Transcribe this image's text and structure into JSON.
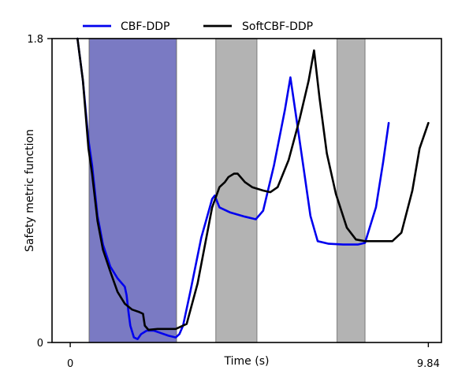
{
  "chart_data": {
    "type": "line",
    "title": "",
    "xlabel": "Time (s)",
    "ylabel": "Safety metric function",
    "xlim": [
      -0.5,
      10.2
    ],
    "ylim": [
      0,
      1.8
    ],
    "x_ticks": [
      {
        "value": 0,
        "label": "0"
      },
      {
        "value": 9.84,
        "label": "9.84"
      }
    ],
    "y_ticks": [
      {
        "value": 0,
        "label": "0"
      },
      {
        "value": 1.8,
        "label": "1.8"
      }
    ],
    "legend_position": "top (above plot)",
    "grid": false,
    "shaded_regions": [
      {
        "x0": 0.52,
        "x1": 2.92,
        "color": "#999999",
        "opacity": 0.75
      },
      {
        "x0": 0.52,
        "x1": 2.92,
        "color": "#4a4ad0",
        "opacity": 0.55
      },
      {
        "x0": 4.0,
        "x1": 5.13,
        "color": "#999999",
        "opacity": 0.75
      },
      {
        "x0": 7.33,
        "x1": 8.1,
        "color": "#999999",
        "opacity": 0.75
      }
    ],
    "series": [
      {
        "name": "CBF-DDP",
        "color": "#0000ee",
        "points": [
          [
            0.2,
            1.8
          ],
          [
            0.35,
            1.55
          ],
          [
            0.5,
            1.2
          ],
          [
            0.6,
            1.05
          ],
          [
            0.75,
            0.75
          ],
          [
            0.9,
            0.58
          ],
          [
            1.1,
            0.45
          ],
          [
            1.3,
            0.38
          ],
          [
            1.5,
            0.33
          ],
          [
            1.55,
            0.28
          ],
          [
            1.6,
            0.18
          ],
          [
            1.65,
            0.1
          ],
          [
            1.75,
            0.03
          ],
          [
            1.85,
            0.02
          ],
          [
            1.95,
            0.05
          ],
          [
            2.1,
            0.07
          ],
          [
            2.3,
            0.07
          ],
          [
            2.5,
            0.055
          ],
          [
            2.7,
            0.04
          ],
          [
            2.9,
            0.03
          ],
          [
            3.0,
            0.05
          ],
          [
            3.1,
            0.1
          ],
          [
            3.3,
            0.3
          ],
          [
            3.6,
            0.62
          ],
          [
            3.9,
            0.85
          ],
          [
            3.97,
            0.87
          ],
          [
            4.1,
            0.8
          ],
          [
            4.4,
            0.77
          ],
          [
            4.8,
            0.745
          ],
          [
            5.1,
            0.73
          ],
          [
            5.3,
            0.78
          ],
          [
            5.6,
            1.05
          ],
          [
            5.9,
            1.38
          ],
          [
            6.05,
            1.57
          ],
          [
            6.2,
            1.35
          ],
          [
            6.4,
            1.05
          ],
          [
            6.6,
            0.75
          ],
          [
            6.8,
            0.6
          ],
          [
            7.1,
            0.585
          ],
          [
            7.5,
            0.58
          ],
          [
            7.9,
            0.58
          ],
          [
            8.1,
            0.59
          ],
          [
            8.4,
            0.8
          ],
          [
            8.6,
            1.07
          ],
          [
            8.75,
            1.3
          ]
        ]
      },
      {
        "name": "SoftCBF-DDP",
        "color": "#000000",
        "points": [
          [
            0.2,
            1.8
          ],
          [
            0.35,
            1.55
          ],
          [
            0.5,
            1.15
          ],
          [
            0.6,
            1.0
          ],
          [
            0.75,
            0.72
          ],
          [
            0.9,
            0.55
          ],
          [
            1.1,
            0.42
          ],
          [
            1.3,
            0.3
          ],
          [
            1.5,
            0.23
          ],
          [
            1.7,
            0.195
          ],
          [
            1.9,
            0.18
          ],
          [
            2.0,
            0.17
          ],
          [
            2.05,
            0.1
          ],
          [
            2.15,
            0.075
          ],
          [
            2.4,
            0.08
          ],
          [
            2.7,
            0.08
          ],
          [
            2.9,
            0.08
          ],
          [
            3.2,
            0.11
          ],
          [
            3.5,
            0.35
          ],
          [
            3.9,
            0.8
          ],
          [
            4.1,
            0.92
          ],
          [
            4.25,
            0.95
          ],
          [
            4.35,
            0.98
          ],
          [
            4.5,
            1.0
          ],
          [
            4.6,
            1.0
          ],
          [
            4.8,
            0.95
          ],
          [
            5.0,
            0.92
          ],
          [
            5.3,
            0.9
          ],
          [
            5.5,
            0.89
          ],
          [
            5.7,
            0.92
          ],
          [
            6.0,
            1.08
          ],
          [
            6.3,
            1.32
          ],
          [
            6.55,
            1.55
          ],
          [
            6.7,
            1.73
          ],
          [
            6.85,
            1.45
          ],
          [
            7.05,
            1.12
          ],
          [
            7.3,
            0.88
          ],
          [
            7.6,
            0.68
          ],
          [
            7.85,
            0.61
          ],
          [
            8.1,
            0.6
          ],
          [
            8.4,
            0.6
          ],
          [
            8.85,
            0.6
          ],
          [
            9.1,
            0.65
          ],
          [
            9.4,
            0.9
          ],
          [
            9.6,
            1.15
          ],
          [
            9.84,
            1.3
          ]
        ]
      }
    ]
  }
}
